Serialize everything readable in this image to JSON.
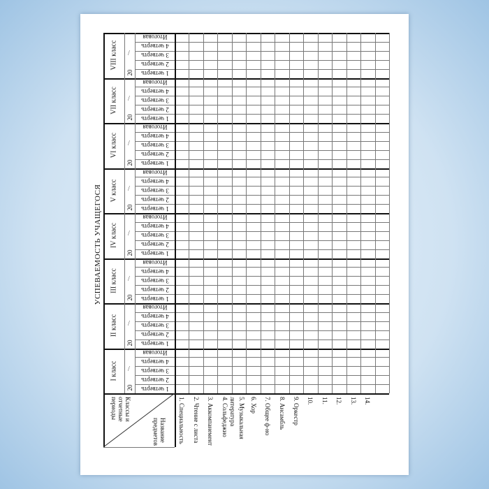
{
  "title": "УСПЕВАЕМОСТЬ   УЧАЩЕГОСЯ",
  "header": {
    "classes_label": "Классы и отчетные периоды",
    "subjects_label": "Название предметов"
  },
  "year_prefix": "20",
  "year_separator": "/",
  "classes": [
    "I класс",
    "II класс",
    "III класс",
    "IV класс",
    "V класс",
    "VI класс",
    "VII класс",
    "VIII класс"
  ],
  "periods": [
    "1 четверть",
    "2 четверть",
    "3 четверть",
    "4 четверть",
    "Итоговая"
  ],
  "subjects": [
    "1. Специальность",
    "2. Чтение с листа",
    "3. Аккомпанемент",
    "4. Сольфеджио",
    "5. Музыкальная литература",
    "6. Хор",
    "7. Общее ф-но",
    "8. Ансамбль",
    "9. Оркестр",
    "10.",
    "11.",
    "12.",
    "13.",
    "14.",
    ""
  ]
}
